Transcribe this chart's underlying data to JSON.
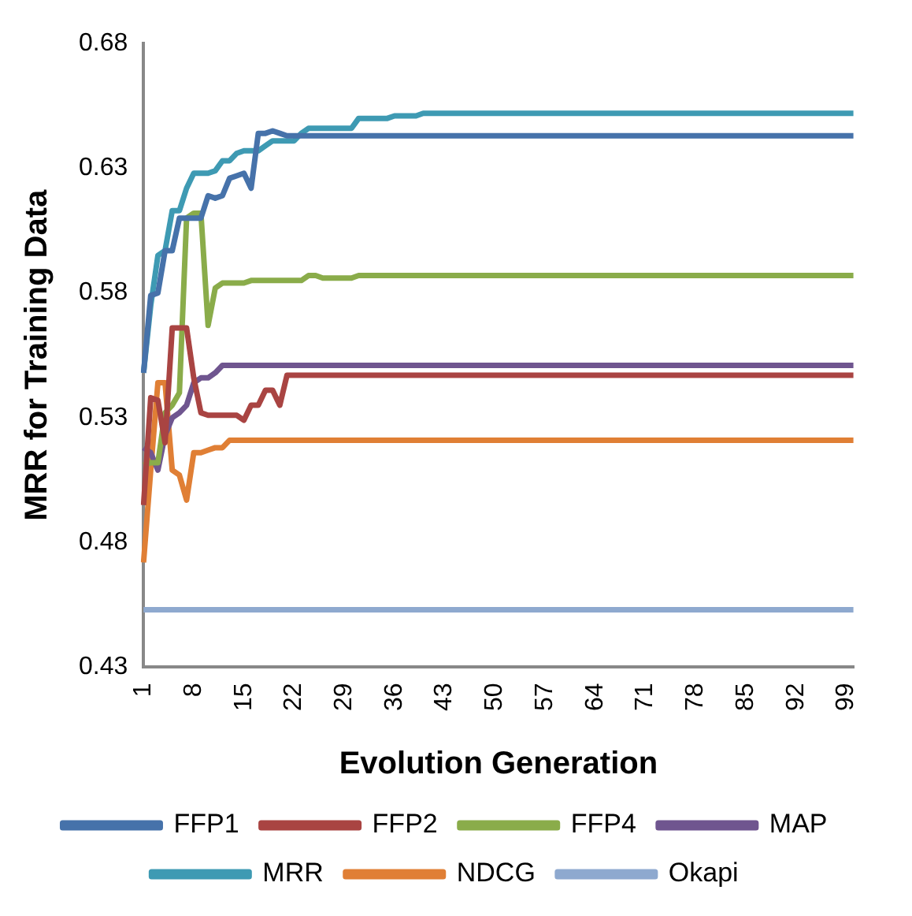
{
  "chart_data": {
    "type": "line",
    "xlabel": "Evolution Generation",
    "ylabel": "MRR for Training Data",
    "categories": [
      "1",
      null,
      null,
      null,
      null,
      null,
      null,
      "8",
      null,
      null,
      null,
      null,
      null,
      null,
      "15",
      null,
      null,
      null,
      null,
      null,
      null,
      "22",
      null,
      null,
      null,
      null,
      null,
      null,
      "29",
      null,
      null,
      null,
      null,
      null,
      null,
      "36",
      null,
      null,
      null,
      null,
      null,
      null,
      "43",
      null,
      null,
      null,
      null,
      null,
      null,
      "50",
      null,
      null,
      null,
      null,
      null,
      null,
      "57",
      null,
      null,
      null,
      null,
      null,
      null,
      "64",
      null,
      null,
      null,
      null,
      null,
      null,
      "71",
      null,
      null,
      null,
      null,
      null,
      null,
      "78",
      null,
      null,
      null,
      null,
      null,
      null,
      "85",
      null,
      null,
      null,
      null,
      null,
      null,
      "92",
      null,
      null,
      null,
      null,
      null,
      null,
      "99",
      null
    ],
    "ylim": [
      0.43,
      0.68
    ],
    "yticks": [
      0.43,
      0.48,
      0.53,
      0.58,
      0.63,
      0.68
    ],
    "grid": false,
    "legend": "bottom",
    "marker": "none",
    "line_style": "solid",
    "series": [
      {
        "name": "FFP1",
        "color": "#4672aa",
        "values": [
          0.548,
          0.579,
          0.58,
          0.597,
          0.597,
          0.61,
          0.61,
          0.61,
          0.61,
          0.619,
          0.618,
          0.619,
          0.626,
          0.627,
          0.628,
          0.622,
          0.644,
          0.644,
          0.645,
          0.644,
          0.643,
          0.643,
          0.643,
          0.643,
          0.643,
          0.643,
          0.643,
          0.643,
          0.643,
          0.643,
          0.643,
          0.643,
          0.643,
          0.643,
          0.643,
          0.643,
          0.643,
          0.643,
          0.643,
          0.643,
          0.643,
          0.643,
          0.643,
          0.643,
          0.643,
          0.643,
          0.643,
          0.643,
          0.643,
          0.643,
          0.643,
          0.643,
          0.643,
          0.643,
          0.643,
          0.643,
          0.643,
          0.643,
          0.643,
          0.643,
          0.643,
          0.643,
          0.643,
          0.643,
          0.643,
          0.643,
          0.643,
          0.643,
          0.643,
          0.643,
          0.643,
          0.643,
          0.643,
          0.643,
          0.643,
          0.643,
          0.643,
          0.643,
          0.643,
          0.643,
          0.643,
          0.643,
          0.643,
          0.643,
          0.643,
          0.643,
          0.643,
          0.643,
          0.643,
          0.643,
          0.643,
          0.643,
          0.643,
          0.643,
          0.643,
          0.643,
          0.643,
          0.643,
          0.643,
          0.643
        ]
      },
      {
        "name": "FFP2",
        "color": "#a94442",
        "values": [
          0.495,
          0.538,
          0.537,
          0.52,
          0.566,
          0.566,
          0.566,
          0.546,
          0.532,
          0.531,
          0.531,
          0.531,
          0.531,
          0.531,
          0.529,
          0.535,
          0.535,
          0.541,
          0.541,
          0.535,
          0.547,
          0.547,
          0.547,
          0.547,
          0.547,
          0.547,
          0.547,
          0.547,
          0.547,
          0.547,
          0.547,
          0.547,
          0.547,
          0.547,
          0.547,
          0.547,
          0.547,
          0.547,
          0.547,
          0.547,
          0.547,
          0.547,
          0.547,
          0.547,
          0.547,
          0.547,
          0.547,
          0.547,
          0.547,
          0.547,
          0.547,
          0.547,
          0.547,
          0.547,
          0.547,
          0.547,
          0.547,
          0.547,
          0.547,
          0.547,
          0.547,
          0.547,
          0.547,
          0.547,
          0.547,
          0.547,
          0.547,
          0.547,
          0.547,
          0.547,
          0.547,
          0.547,
          0.547,
          0.547,
          0.547,
          0.547,
          0.547,
          0.547,
          0.547,
          0.547,
          0.547,
          0.547,
          0.547,
          0.547,
          0.547,
          0.547,
          0.547,
          0.547,
          0.547,
          0.547,
          0.547,
          0.547,
          0.547,
          0.547,
          0.547,
          0.547,
          0.547,
          0.547,
          0.547,
          0.547
        ]
      },
      {
        "name": "FFP4",
        "color": "#8aac4a",
        "values": [
          0.511,
          0.512,
          0.512,
          0.532,
          0.535,
          0.54,
          0.61,
          0.612,
          0.612,
          0.567,
          0.582,
          0.584,
          0.584,
          0.584,
          0.584,
          0.585,
          0.585,
          0.585,
          0.585,
          0.585,
          0.585,
          0.585,
          0.585,
          0.587,
          0.587,
          0.586,
          0.586,
          0.586,
          0.586,
          0.586,
          0.587,
          0.587,
          0.587,
          0.587,
          0.587,
          0.587,
          0.587,
          0.587,
          0.587,
          0.587,
          0.587,
          0.587,
          0.587,
          0.587,
          0.587,
          0.587,
          0.587,
          0.587,
          0.587,
          0.587,
          0.587,
          0.587,
          0.587,
          0.587,
          0.587,
          0.587,
          0.587,
          0.587,
          0.587,
          0.587,
          0.587,
          0.587,
          0.587,
          0.587,
          0.587,
          0.587,
          0.587,
          0.587,
          0.587,
          0.587,
          0.587,
          0.587,
          0.587,
          0.587,
          0.587,
          0.587,
          0.587,
          0.587,
          0.587,
          0.587,
          0.587,
          0.587,
          0.587,
          0.587,
          0.587,
          0.587,
          0.587,
          0.587,
          0.587,
          0.587,
          0.587,
          0.587,
          0.587,
          0.587,
          0.587,
          0.587,
          0.587,
          0.587,
          0.587,
          0.587
        ]
      },
      {
        "name": "MAP",
        "color": "#6f558f",
        "values": [
          0.518,
          0.516,
          0.509,
          0.523,
          0.53,
          0.532,
          0.535,
          0.544,
          0.546,
          0.546,
          0.548,
          0.551,
          0.551,
          0.551,
          0.551,
          0.551,
          0.551,
          0.551,
          0.551,
          0.551,
          0.551,
          0.551,
          0.551,
          0.551,
          0.551,
          0.551,
          0.551,
          0.551,
          0.551,
          0.551,
          0.551,
          0.551,
          0.551,
          0.551,
          0.551,
          0.551,
          0.551,
          0.551,
          0.551,
          0.551,
          0.551,
          0.551,
          0.551,
          0.551,
          0.551,
          0.551,
          0.551,
          0.551,
          0.551,
          0.551,
          0.551,
          0.551,
          0.551,
          0.551,
          0.551,
          0.551,
          0.551,
          0.551,
          0.551,
          0.551,
          0.551,
          0.551,
          0.551,
          0.551,
          0.551,
          0.551,
          0.551,
          0.551,
          0.551,
          0.551,
          0.551,
          0.551,
          0.551,
          0.551,
          0.551,
          0.551,
          0.551,
          0.551,
          0.551,
          0.551,
          0.551,
          0.551,
          0.551,
          0.551,
          0.551,
          0.551,
          0.551,
          0.551,
          0.551,
          0.551,
          0.551,
          0.551,
          0.551,
          0.551,
          0.551,
          0.551,
          0.551,
          0.551,
          0.551,
          0.551
        ]
      },
      {
        "name": "MRR",
        "color": "#3e9ab3",
        "values": [
          0.548,
          0.575,
          0.595,
          0.597,
          0.613,
          0.613,
          0.622,
          0.628,
          0.628,
          0.628,
          0.629,
          0.633,
          0.633,
          0.636,
          0.637,
          0.637,
          0.637,
          0.639,
          0.641,
          0.641,
          0.641,
          0.641,
          0.644,
          0.646,
          0.646,
          0.646,
          0.646,
          0.646,
          0.646,
          0.646,
          0.65,
          0.65,
          0.65,
          0.65,
          0.65,
          0.651,
          0.651,
          0.651,
          0.651,
          0.652,
          0.652,
          0.652,
          0.652,
          0.652,
          0.652,
          0.652,
          0.652,
          0.652,
          0.652,
          0.652,
          0.652,
          0.652,
          0.652,
          0.652,
          0.652,
          0.652,
          0.652,
          0.652,
          0.652,
          0.652,
          0.652,
          0.652,
          0.652,
          0.652,
          0.652,
          0.652,
          0.652,
          0.652,
          0.652,
          0.652,
          0.652,
          0.652,
          0.652,
          0.652,
          0.652,
          0.652,
          0.652,
          0.652,
          0.652,
          0.652,
          0.652,
          0.652,
          0.652,
          0.652,
          0.652,
          0.652,
          0.652,
          0.652,
          0.652,
          0.652,
          0.652,
          0.652,
          0.652,
          0.652,
          0.652,
          0.652,
          0.652,
          0.652,
          0.652,
          0.652
        ]
      },
      {
        "name": "NDCG",
        "color": "#e07f35",
        "values": [
          0.472,
          0.509,
          0.544,
          0.544,
          0.509,
          0.507,
          0.497,
          0.516,
          0.516,
          0.517,
          0.518,
          0.518,
          0.521,
          0.521,
          0.521,
          0.521,
          0.521,
          0.521,
          0.521,
          0.521,
          0.521,
          0.521,
          0.521,
          0.521,
          0.521,
          0.521,
          0.521,
          0.521,
          0.521,
          0.521,
          0.521,
          0.521,
          0.521,
          0.521,
          0.521,
          0.521,
          0.521,
          0.521,
          0.521,
          0.521,
          0.521,
          0.521,
          0.521,
          0.521,
          0.521,
          0.521,
          0.521,
          0.521,
          0.521,
          0.521,
          0.521,
          0.521,
          0.521,
          0.521,
          0.521,
          0.521,
          0.521,
          0.521,
          0.521,
          0.521,
          0.521,
          0.521,
          0.521,
          0.521,
          0.521,
          0.521,
          0.521,
          0.521,
          0.521,
          0.521,
          0.521,
          0.521,
          0.521,
          0.521,
          0.521,
          0.521,
          0.521,
          0.521,
          0.521,
          0.521,
          0.521,
          0.521,
          0.521,
          0.521,
          0.521,
          0.521,
          0.521,
          0.521,
          0.521,
          0.521,
          0.521,
          0.521,
          0.521,
          0.521,
          0.521,
          0.521,
          0.521,
          0.521,
          0.521,
          0.521
        ]
      },
      {
        "name": "Okapi",
        "color": "#8ea9cf",
        "values": [
          0.453,
          0.453,
          0.453,
          0.453,
          0.453,
          0.453,
          0.453,
          0.453,
          0.453,
          0.453,
          0.453,
          0.453,
          0.453,
          0.453,
          0.453,
          0.453,
          0.453,
          0.453,
          0.453,
          0.453,
          0.453,
          0.453,
          0.453,
          0.453,
          0.453,
          0.453,
          0.453,
          0.453,
          0.453,
          0.453,
          0.453,
          0.453,
          0.453,
          0.453,
          0.453,
          0.453,
          0.453,
          0.453,
          0.453,
          0.453,
          0.453,
          0.453,
          0.453,
          0.453,
          0.453,
          0.453,
          0.453,
          0.453,
          0.453,
          0.453,
          0.453,
          0.453,
          0.453,
          0.453,
          0.453,
          0.453,
          0.453,
          0.453,
          0.453,
          0.453,
          0.453,
          0.453,
          0.453,
          0.453,
          0.453,
          0.453,
          0.453,
          0.453,
          0.453,
          0.453,
          0.453,
          0.453,
          0.453,
          0.453,
          0.453,
          0.453,
          0.453,
          0.453,
          0.453,
          0.453,
          0.453,
          0.453,
          0.453,
          0.453,
          0.453,
          0.453,
          0.453,
          0.453,
          0.453,
          0.453,
          0.453,
          0.453,
          0.453,
          0.453,
          0.453,
          0.453,
          0.453,
          0.453,
          0.453,
          0.453
        ]
      }
    ]
  }
}
